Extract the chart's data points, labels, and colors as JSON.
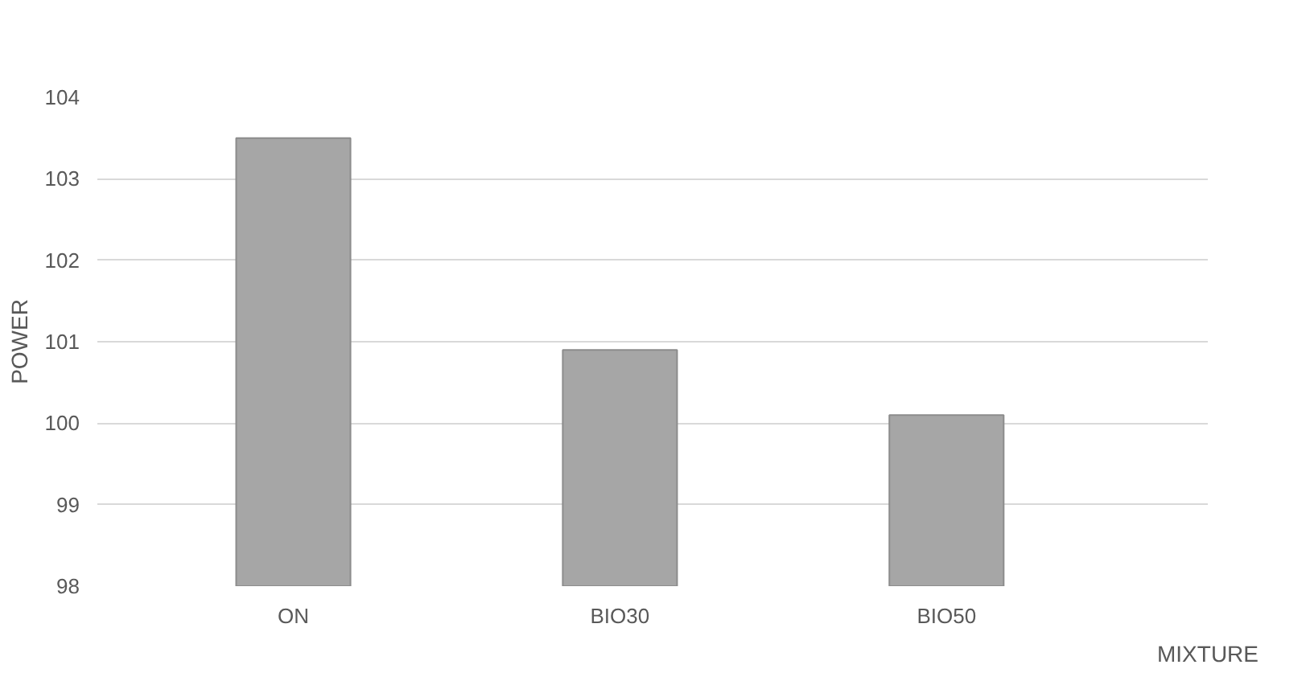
{
  "chart_data": {
    "type": "bar",
    "categories": [
      "ON",
      "BIO30",
      "BIO50"
    ],
    "values": [
      103.5,
      100.9,
      100.1
    ],
    "color": "#a6a6a6",
    "xlabel": "MIXTURE",
    "ylabel": "POWER",
    "ylim": [
      98,
      104
    ],
    "yticks": [
      98,
      99,
      100,
      101,
      102,
      103,
      104
    ],
    "grid": "y"
  }
}
